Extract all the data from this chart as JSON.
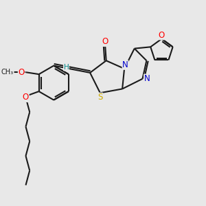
{
  "bg_color": "#e8e8e8",
  "atom_colors": {
    "O": "#ff0000",
    "N": "#0000cc",
    "S": "#ccaa00",
    "C": "#1a1a1a",
    "H": "#008888"
  },
  "font_size": 8.5,
  "fig_size": [
    3.0,
    3.0
  ],
  "dpi": 100
}
